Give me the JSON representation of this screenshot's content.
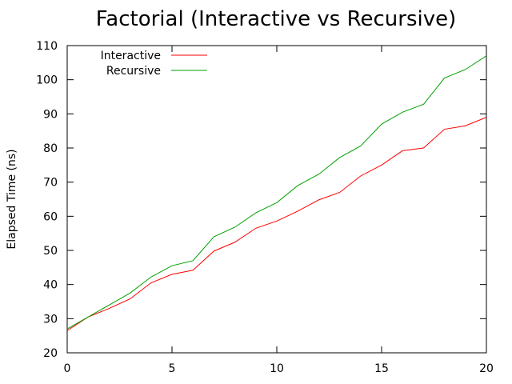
{
  "chart_data": {
    "type": "line",
    "title": "Factorial (Interactive vs Recursive)",
    "xlabel": "",
    "ylabel": "Elapsed Time (ns)",
    "xlim": [
      0,
      20
    ],
    "ylim": [
      20,
      110
    ],
    "x_ticks": [
      0,
      5,
      10,
      15,
      20
    ],
    "y_ticks": [
      20,
      30,
      40,
      50,
      60,
      70,
      80,
      90,
      100,
      110
    ],
    "grid": false,
    "legend_position": "top-left",
    "x": [
      0,
      1,
      2,
      3,
      4,
      5,
      6,
      7,
      8,
      9,
      10,
      11,
      12,
      13,
      14,
      15,
      16,
      17,
      18,
      19,
      20
    ],
    "series": [
      {
        "name": "Interactive",
        "color": "#ff0000",
        "values": [
          26.5,
          30.5,
          33.0,
          35.8,
          40.5,
          43.0,
          44.2,
          49.8,
          52.4,
          56.5,
          58.6,
          61.5,
          64.8,
          67.0,
          71.8,
          75.0,
          79.2,
          80.0,
          85.5,
          86.5,
          89.0
        ]
      },
      {
        "name": "Recursive",
        "color": "#00a000",
        "values": [
          27.0,
          30.5,
          34.0,
          37.5,
          42.2,
          45.5,
          47.0,
          54.0,
          56.8,
          61.0,
          64.0,
          69.0,
          72.3,
          77.2,
          80.6,
          87.0,
          90.5,
          92.8,
          100.5,
          103.0,
          107.0
        ]
      }
    ]
  }
}
